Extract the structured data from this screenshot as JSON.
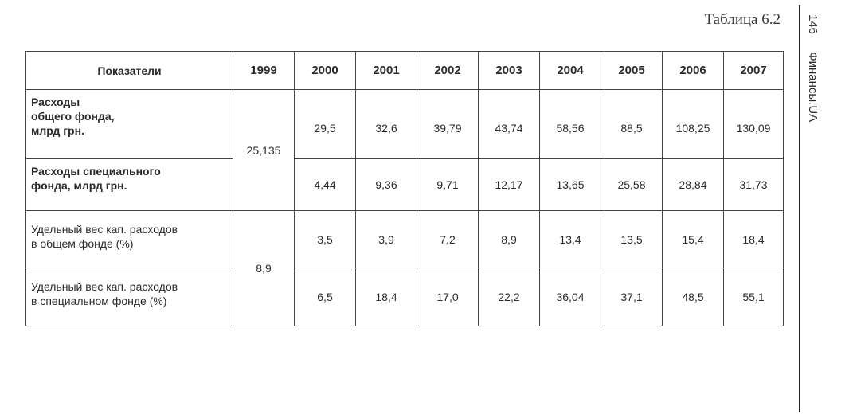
{
  "caption": "Таблица 6.2",
  "side_header": {
    "page_number": "146",
    "site": "Финансы.UA"
  },
  "table": {
    "header": {
      "indicator": "Показатели",
      "years": [
        "1999",
        "2000",
        "2001",
        "2002",
        "2003",
        "2004",
        "2005",
        "2006",
        "2007"
      ]
    },
    "groups": [
      {
        "value_1999": "25,135",
        "rows": [
          {
            "label": [
              "Расходы",
              "общего фонда,",
              "млрд грн."
            ],
            "values": [
              "29,5",
              "32,6",
              "39,79",
              "43,74",
              "58,56",
              "88,5",
              "108,25",
              "130,09"
            ]
          },
          {
            "label": [
              "Расходы специального",
              "фонда, млрд грн."
            ],
            "values": [
              "4,44",
              "9,36",
              "9,71",
              "12,17",
              "13,65",
              "25,58",
              "28,84",
              "31,73"
            ]
          }
        ]
      },
      {
        "value_1999": "8,9",
        "rows": [
          {
            "label": [
              "Удельный вес кап. расходов",
              "в общем фонде (%)"
            ],
            "values": [
              "3,5",
              "3,9",
              "7,2",
              "8,9",
              "13,4",
              "13,5",
              "15,4",
              "18,4"
            ]
          },
          {
            "label": [
              "Удельный вес кап. расходов",
              "в специальном фонде (%)"
            ],
            "values": [
              "6,5",
              "18,4",
              "17,0",
              "22,2",
              "36,04",
              "37,1",
              "48,5",
              "55,1"
            ]
          }
        ]
      }
    ]
  }
}
